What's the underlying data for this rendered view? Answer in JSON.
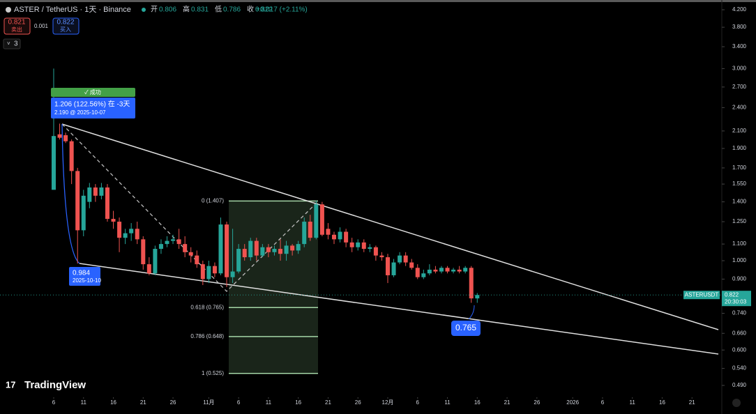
{
  "header": {
    "symbol": "ASTER / TetherUS · 1天 · Binance",
    "ohlc": [
      {
        "label": "开",
        "value": 0.806
      },
      {
        "label": "高",
        "value": 0.831
      },
      {
        "label": "低",
        "value": 0.786
      },
      {
        "label": "收",
        "value": 0.822
      }
    ],
    "change": "+0.017 (+2.11%)",
    "sell_price": 0.821,
    "sell_label": "卖出",
    "spread": 0.001,
    "buy_price": 0.822,
    "buy_label": "买入",
    "indicators_count": 3,
    "logo": "TradingView"
  },
  "annotations": {
    "success": "✓ 成功",
    "measure": "1.206 (122.56%) 在 -3天",
    "measure_sub": "2.190 @ 2025-10-07",
    "low_price": 0.984,
    "low_date": "2025-10-10",
    "target": 0.765
  },
  "chart_data": {
    "type": "candlestick",
    "log_scale": true,
    "up_color": "#26a69a",
    "down_color": "#ef5350",
    "x": [
      "2025-10-06",
      "2025-10-07",
      "2025-10-08",
      "2025-10-09",
      "2025-10-10",
      "2025-10-11",
      "2025-10-12",
      "2025-10-13",
      "2025-10-14",
      "2025-10-15",
      "2025-10-16",
      "2025-10-17",
      "2025-10-18",
      "2025-10-19",
      "2025-10-20",
      "2025-10-21",
      "2025-10-22",
      "2025-10-23",
      "2025-10-24",
      "2025-10-25",
      "2025-10-26",
      "2025-10-27",
      "2025-10-28",
      "2025-10-29",
      "2025-10-30",
      "2025-10-31",
      "2025-11-01",
      "2025-11-02",
      "2025-11-03",
      "2025-11-04",
      "2025-11-05",
      "2025-11-06",
      "2025-11-07",
      "2025-11-08",
      "2025-11-09",
      "2025-11-10",
      "2025-11-11",
      "2025-11-12",
      "2025-11-13",
      "2025-11-14",
      "2025-11-15",
      "2025-11-16",
      "2025-11-17",
      "2025-11-18",
      "2025-11-19",
      "2025-11-20",
      "2025-11-21",
      "2025-11-22",
      "2025-11-23",
      "2025-11-24",
      "2025-11-25",
      "2025-11-26",
      "2025-11-27",
      "2025-11-28",
      "2025-11-29",
      "2025-11-30",
      "2025-12-01",
      "2025-12-02",
      "2025-12-03",
      "2025-12-04",
      "2025-12-05",
      "2025-12-06",
      "2025-12-07",
      "2025-12-08",
      "2025-12-09",
      "2025-12-10",
      "2025-12-11",
      "2025-12-12",
      "2025-12-13",
      "2025-12-14",
      "2025-12-15",
      "2025-12-16"
    ],
    "open": [
      1.5,
      2.06,
      2.05,
      1.98,
      1.67,
      1.19,
      1.4,
      1.52,
      1.45,
      1.52,
      1.27,
      1.25,
      1.14,
      1.17,
      1.2,
      1.13,
      0.98,
      0.93,
      1.07,
      1.1,
      1.12,
      1.13,
      1.1,
      1.05,
      1.03,
      0.98,
      0.9,
      0.97,
      0.93,
      1.23,
      0.91,
      0.94,
      1.07,
      1.02,
      1.12,
      1.03,
      1.08,
      1.05,
      1.07,
      1.04,
      1.09,
      1.06,
      1.1,
      1.25,
      1.14,
      1.38,
      1.2,
      1.16,
      1.13,
      1.18,
      1.11,
      1.08,
      1.11,
      1.07,
      1.08,
      1.03,
      1.02,
      0.92,
      0.99,
      1.03,
      0.99,
      0.96,
      0.91,
      0.93,
      0.95,
      0.94,
      0.96,
      0.94,
      0.95,
      0.94,
      0.96,
      0.806
    ],
    "high": [
      3.0,
      2.19,
      2.08,
      2.0,
      1.7,
      1.5,
      1.56,
      1.55,
      1.56,
      1.55,
      1.33,
      1.28,
      1.2,
      1.24,
      1.25,
      1.15,
      1.02,
      1.09,
      1.13,
      1.15,
      1.16,
      1.2,
      1.15,
      1.08,
      1.06,
      1.0,
      1.0,
      0.99,
      1.28,
      1.25,
      1.2,
      1.1,
      1.1,
      1.14,
      1.14,
      1.1,
      1.1,
      1.09,
      1.13,
      1.12,
      1.1,
      1.12,
      1.28,
      1.3,
      1.41,
      1.4,
      1.24,
      1.18,
      1.21,
      1.2,
      1.14,
      1.13,
      1.13,
      1.1,
      1.09,
      1.05,
      1.04,
      1.01,
      1.05,
      1.05,
      1.01,
      0.98,
      0.95,
      0.98,
      0.97,
      0.97,
      0.97,
      0.96,
      0.97,
      0.97,
      0.97,
      0.831
    ],
    "low": [
      1.5,
      2.0,
      1.96,
      1.55,
      0.984,
      1.15,
      1.35,
      1.4,
      1.42,
      1.25,
      1.2,
      1.05,
      1.1,
      1.12,
      1.1,
      0.95,
      0.92,
      0.92,
      1.04,
      1.08,
      1.1,
      1.07,
      1.02,
      0.99,
      0.96,
      0.87,
      0.88,
      0.91,
      0.92,
      0.86,
      0.88,
      0.93,
      1.0,
      1.0,
      1.0,
      1.02,
      1.02,
      1.03,
      1.0,
      1.0,
      1.03,
      1.04,
      1.08,
      1.12,
      1.13,
      1.15,
      1.13,
      1.1,
      1.11,
      1.08,
      1.05,
      1.06,
      1.05,
      1.05,
      1.0,
      1.0,
      0.88,
      0.91,
      0.98,
      0.97,
      0.95,
      0.9,
      0.9,
      0.92,
      0.93,
      0.93,
      0.93,
      0.93,
      0.93,
      0.93,
      0.786,
      0.786
    ],
    "close": [
      2.04,
      2.02,
      1.98,
      1.67,
      1.19,
      1.45,
      1.52,
      1.45,
      1.52,
      1.27,
      1.25,
      1.14,
      1.17,
      1.2,
      1.13,
      0.98,
      0.93,
      1.07,
      1.1,
      1.12,
      1.13,
      1.1,
      1.05,
      1.03,
      0.98,
      0.9,
      0.97,
      0.93,
      1.23,
      0.91,
      0.94,
      1.07,
      1.02,
      1.12,
      1.03,
      1.08,
      1.05,
      1.07,
      1.04,
      1.09,
      1.06,
      1.1,
      1.25,
      1.14,
      1.38,
      1.16,
      1.16,
      1.13,
      1.18,
      1.11,
      1.08,
      1.11,
      1.07,
      1.08,
      1.03,
      1.02,
      0.92,
      0.99,
      1.03,
      0.99,
      0.96,
      0.91,
      0.93,
      0.95,
      0.94,
      0.96,
      0.94,
      0.95,
      0.94,
      0.96,
      0.806,
      0.822
    ],
    "xlim": [
      "2025-09-27",
      "2026-01-26"
    ],
    "xticks": [
      {
        "value": "2025-10-06",
        "label": "6"
      },
      {
        "value": "2025-10-11",
        "label": "11"
      },
      {
        "value": "2025-10-16",
        "label": "16"
      },
      {
        "value": "2025-10-21",
        "label": "21"
      },
      {
        "value": "2025-10-26",
        "label": "26"
      },
      {
        "value": "2025-11-01",
        "label": "11月"
      },
      {
        "value": "2025-11-06",
        "label": "6"
      },
      {
        "value": "2025-11-11",
        "label": "11"
      },
      {
        "value": "2025-11-16",
        "label": "16"
      },
      {
        "value": "2025-11-21",
        "label": "21"
      },
      {
        "value": "2025-11-26",
        "label": "26"
      },
      {
        "value": "2025-12-01",
        "label": "12月"
      },
      {
        "value": "2025-12-06",
        "label": "6"
      },
      {
        "value": "2025-12-11",
        "label": "11"
      },
      {
        "value": "2025-12-16",
        "label": "16"
      },
      {
        "value": "2025-12-21",
        "label": "21"
      },
      {
        "value": "2025-12-26",
        "label": "26"
      },
      {
        "value": "2026-01-01",
        "label": "2026"
      },
      {
        "value": "2026-01-06",
        "label": "6"
      },
      {
        "value": "2026-01-11",
        "label": "11"
      },
      {
        "value": "2026-01-16",
        "label": "16"
      },
      {
        "value": "2026-01-21",
        "label": "21"
      }
    ],
    "ylim": [
      0.49,
      4.2
    ],
    "yticks": [
      {
        "value": 4.2,
        "label": "4.200"
      },
      {
        "value": 3.8,
        "label": "3.800"
      },
      {
        "value": 3.4,
        "label": "3.400"
      },
      {
        "value": 3.0,
        "label": "3.000"
      },
      {
        "value": 2.7,
        "label": "2.700"
      },
      {
        "value": 2.4,
        "label": "2.400"
      },
      {
        "value": 2.1,
        "label": "2.100"
      },
      {
        "value": 1.9,
        "label": "1.900"
      },
      {
        "value": 1.7,
        "label": "1.700"
      },
      {
        "value": 1.55,
        "label": "1.550"
      },
      {
        "value": 1.4,
        "label": "1.400"
      },
      {
        "value": 1.25,
        "label": "1.250"
      },
      {
        "value": 1.1,
        "label": "1.100"
      },
      {
        "value": 1.0,
        "label": "1.000"
      },
      {
        "value": 0.9,
        "label": "0.900"
      },
      {
        "value": 0.74,
        "label": "0.740"
      },
      {
        "value": 0.66,
        "label": "0.660"
      },
      {
        "value": 0.6,
        "label": "0.600"
      },
      {
        "value": 0.54,
        "label": "0.540"
      },
      {
        "value": 0.49,
        "label": "0.490"
      }
    ],
    "fib_levels": [
      {
        "value": 1.407,
        "label": "0 (1.407)"
      },
      {
        "value": 0.765,
        "label": "0.618 (0.765)"
      },
      {
        "value": 0.648,
        "label": "0.786 (0.648)"
      },
      {
        "value": 0.525,
        "label": "1 (0.525)"
      }
    ],
    "price_tag": {
      "symbol": "ASTERUSDT",
      "price": 0.822,
      "countdown": "20:30:03"
    }
  }
}
